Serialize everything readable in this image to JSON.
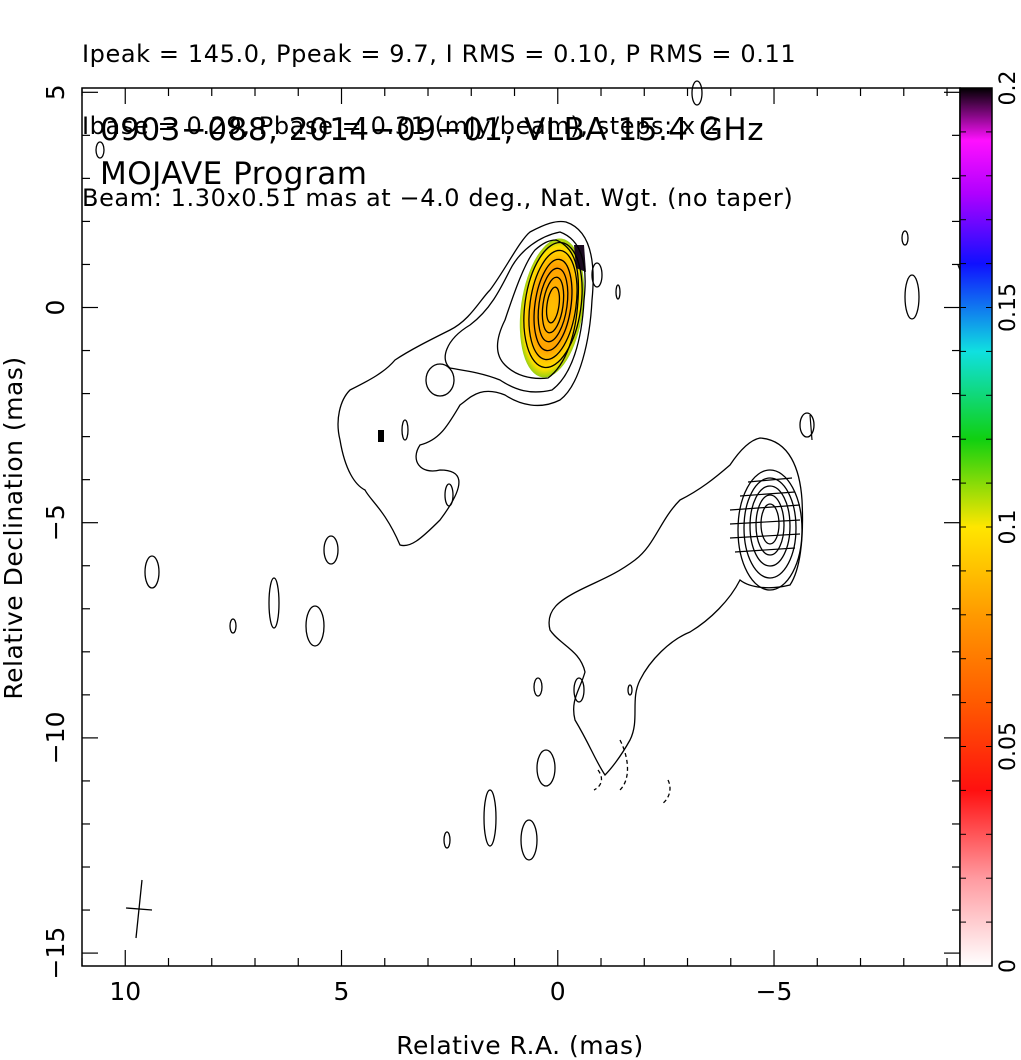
{
  "header": {
    "line1": "Ipeak = 145.0, Ppeak = 9.7, I RMS = 0.10, P RMS = 0.11",
    "line2": "Ibase = 0.29, Pbase = 0.31 (mJy/beam), steps: x 2",
    "line3": "Beam: 1.30x0.51 mas at −4.0 deg., Nat. Wgt. (no taper)"
  },
  "chart_data": {
    "type": "contour",
    "title": "0903−088, 2014−09−01, VLBA 15.4 GHz",
    "subtitle": "MOJAVE Program",
    "xlabel": "Relative R.A. (mas)",
    "ylabel": "Relative Declination (mas)",
    "xlim": [
      11,
      -9.3
    ],
    "ylim": [
      -15.3,
      5.1
    ],
    "x_tick_labels": [
      "10",
      "5",
      "0",
      "−5"
    ],
    "x_ticks": [
      10,
      5,
      0,
      -5
    ],
    "y_tick_labels": [
      "5",
      "0",
      "−5",
      "−10",
      "−15"
    ],
    "y_ticks": [
      5,
      0,
      -5,
      -10,
      -15
    ],
    "colorbar": {
      "label_values": [
        0,
        0.05,
        0.1,
        0.15,
        0.2
      ],
      "tick_labels": [
        "0",
        "0.05",
        "0.1",
        "0.15",
        "0.2"
      ],
      "range": [
        0,
        0.2
      ]
    },
    "components": [
      {
        "name": "core",
        "ra": 0,
        "dec": 0
      },
      {
        "name": "jet knot",
        "ra": -5,
        "dec": -5
      }
    ],
    "beam": {
      "ra": 9.8,
      "dec": -14.1,
      "major_mas": 1.3,
      "minor_mas": 0.51,
      "pa_deg": -4.0
    }
  }
}
